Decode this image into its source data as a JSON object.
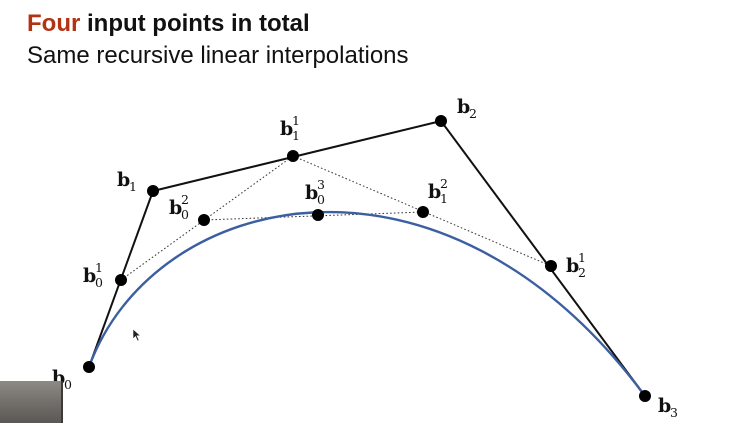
{
  "slide": {
    "title_accent": "Four",
    "title_rest": " input points in total",
    "subtitle": "Same recursive linear interpolations"
  },
  "colors": {
    "title_accent": "#b23212",
    "control_polygon": "#111111",
    "construction_lines": "#333333",
    "curve": "#3b5fa0",
    "points": "#000000"
  },
  "points": [
    {
      "id": "b0",
      "base": "b",
      "sub": "0",
      "sup": ""
    },
    {
      "id": "b1",
      "base": "b",
      "sub": "1",
      "sup": ""
    },
    {
      "id": "b2",
      "base": "b",
      "sub": "2",
      "sup": ""
    },
    {
      "id": "b3",
      "base": "b",
      "sub": "3",
      "sup": ""
    },
    {
      "id": "b01",
      "base": "b",
      "sub": "0",
      "sup": "1"
    },
    {
      "id": "b11",
      "base": "b",
      "sub": "1",
      "sup": "1"
    },
    {
      "id": "b21",
      "base": "b",
      "sub": "2",
      "sup": "1"
    },
    {
      "id": "b02",
      "base": "b",
      "sub": "0",
      "sup": "2"
    },
    {
      "id": "b12",
      "base": "b",
      "sub": "1",
      "sup": "2"
    },
    {
      "id": "b03",
      "base": "b",
      "sub": "0",
      "sup": "3"
    }
  ],
  "diagram": {
    "curve_type": "cubic-bezier",
    "control_polygon": [
      "b0",
      "b1",
      "b2",
      "b3"
    ],
    "construction_segments": [
      [
        "b01",
        "b11"
      ],
      [
        "b11",
        "b21"
      ],
      [
        "b02",
        "b12"
      ]
    ]
  }
}
